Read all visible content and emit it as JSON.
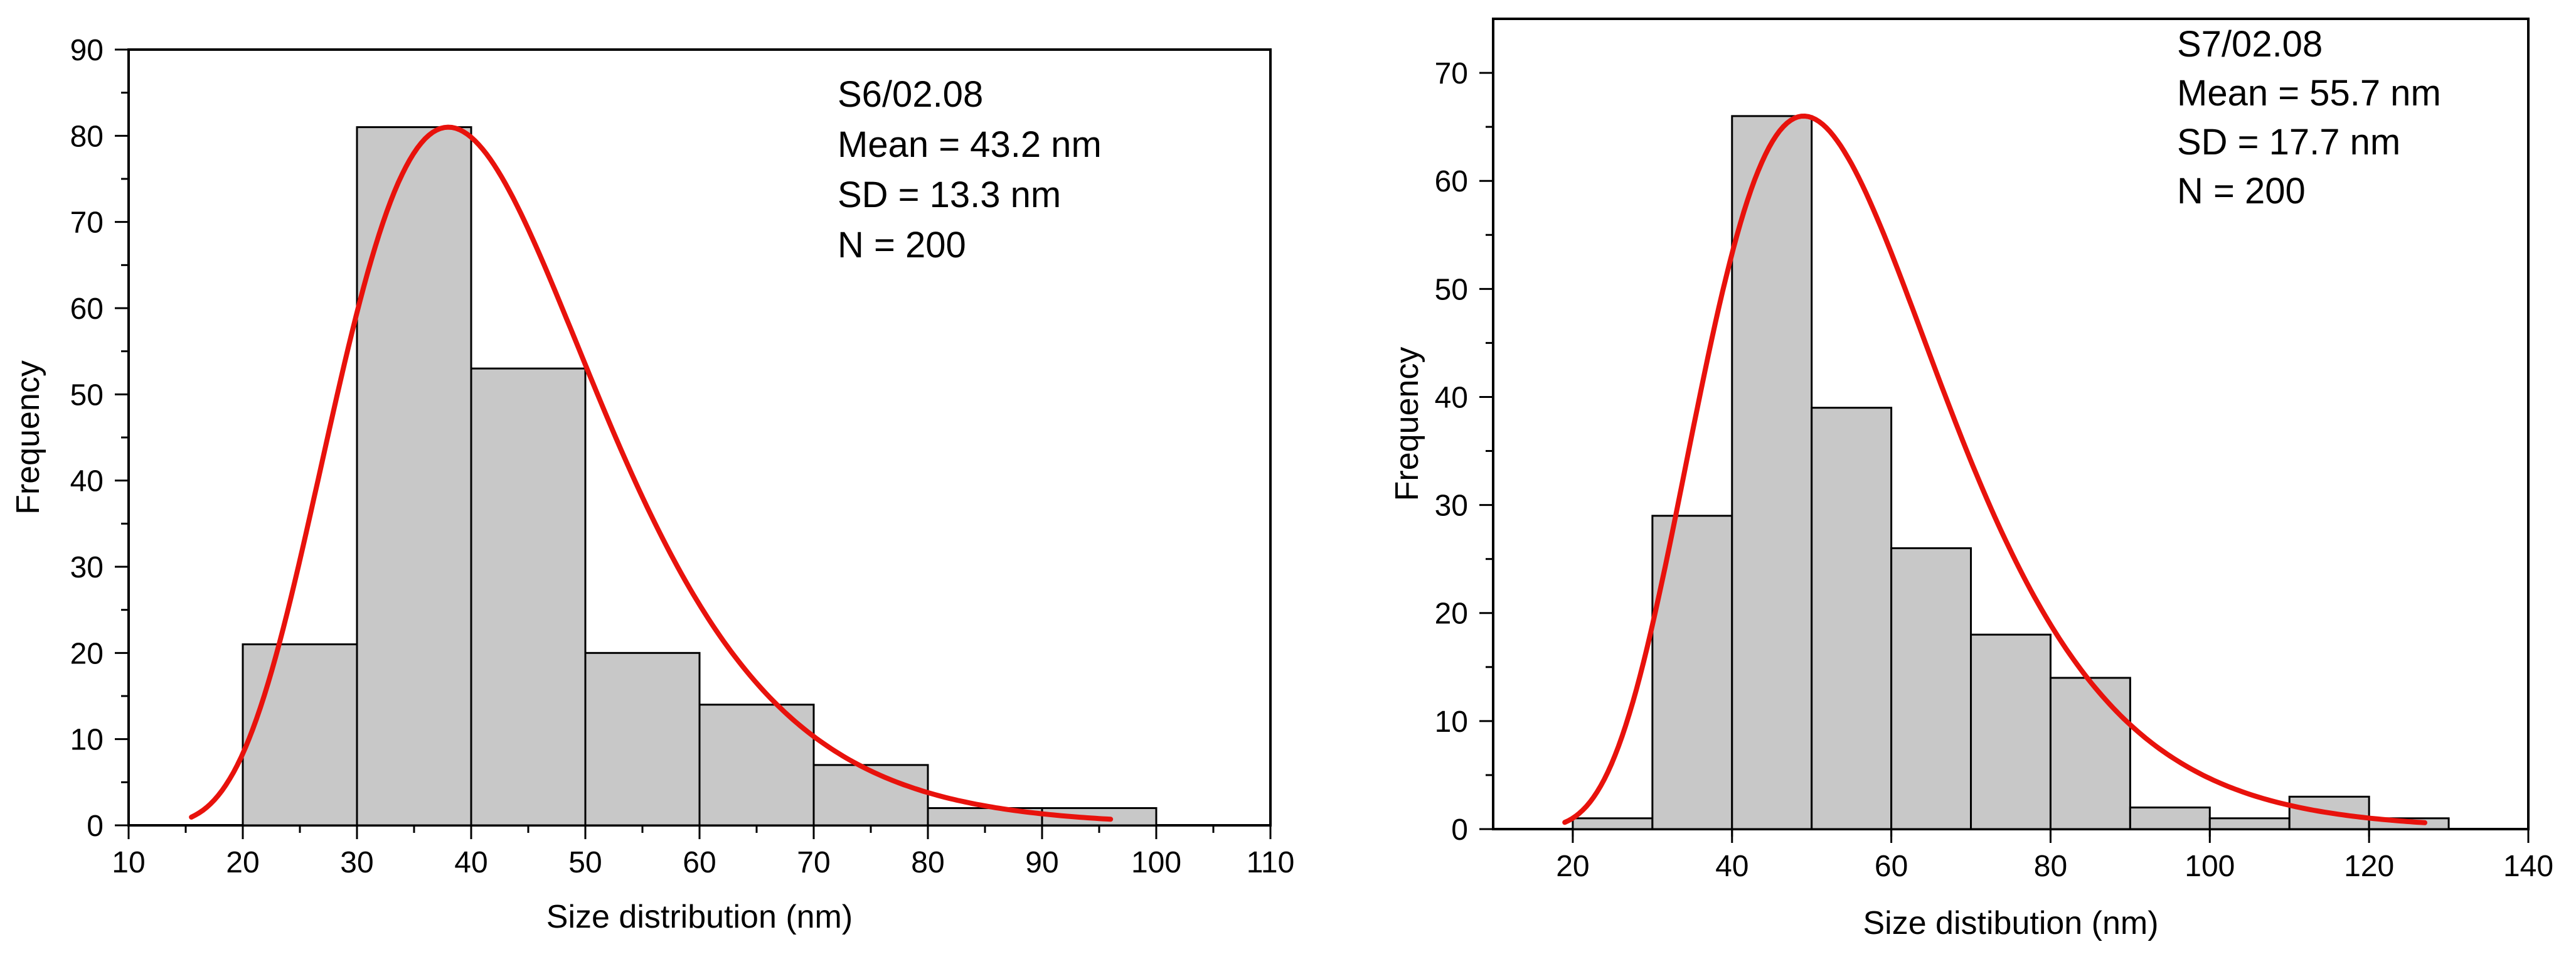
{
  "chart_data": [
    {
      "type": "bar",
      "subtype": "histogram-with-fit",
      "xlabel": "Size distribution (nm)",
      "ylabel": "Frequency",
      "xlim": [
        10,
        110
      ],
      "ylim": [
        0,
        90
      ],
      "xticks": [
        "10",
        "20",
        "30",
        "40",
        "50",
        "60",
        "70",
        "80",
        "90",
        "100",
        "110"
      ],
      "yticks": [
        "0",
        "10",
        "20",
        "30",
        "40",
        "50",
        "60",
        "70",
        "80",
        "90"
      ],
      "bins": [
        {
          "from": 20,
          "to": 30,
          "value": 21
        },
        {
          "from": 30,
          "to": 40,
          "value": 81
        },
        {
          "from": 40,
          "to": 50,
          "value": 53
        },
        {
          "from": 50,
          "to": 60,
          "value": 20
        },
        {
          "from": 60,
          "to": 70,
          "value": 14
        },
        {
          "from": 70,
          "to": 80,
          "value": 7
        },
        {
          "from": 80,
          "to": 90,
          "value": 2
        },
        {
          "from": 90,
          "to": 100,
          "value": 2
        }
      ],
      "fit": {
        "kind": "lognormal",
        "x_range": [
          15.5,
          96
        ],
        "peak_x": 38,
        "peak_y": 81,
        "mean": 43.2,
        "sd": 13.3,
        "color": "#e8120c"
      },
      "bar_color": "#c8c8c8",
      "annotations": [
        "S6/02.08",
        "Mean = 43.2 nm",
        "SD = 13.3 nm",
        "N = 200"
      ]
    },
    {
      "type": "bar",
      "subtype": "histogram-with-fit",
      "xlabel": "Size distibution (nm)",
      "ylabel": "Frequency",
      "xlim": [
        10,
        140
      ],
      "ylim": [
        0,
        75
      ],
      "xticks": [
        "20",
        "40",
        "60",
        "80",
        "100",
        "120",
        "140"
      ],
      "yticks": [
        "0",
        "10",
        "20",
        "30",
        "40",
        "50",
        "60",
        "70"
      ],
      "bins": [
        {
          "from": 20,
          "to": 30,
          "value": 1
        },
        {
          "from": 30,
          "to": 40,
          "value": 29
        },
        {
          "from": 40,
          "to": 50,
          "value": 66
        },
        {
          "from": 50,
          "to": 60,
          "value": 39
        },
        {
          "from": 60,
          "to": 70,
          "value": 26
        },
        {
          "from": 70,
          "to": 80,
          "value": 18
        },
        {
          "from": 80,
          "to": 90,
          "value": 14
        },
        {
          "from": 90,
          "to": 100,
          "value": 2
        },
        {
          "from": 100,
          "to": 110,
          "value": 1
        },
        {
          "from": 110,
          "to": 120,
          "value": 3
        },
        {
          "from": 120,
          "to": 130,
          "value": 1
        }
      ],
      "fit": {
        "kind": "lognormal",
        "x_range": [
          19,
          127
        ],
        "peak_x": 49,
        "peak_y": 66,
        "mean": 55.7,
        "sd": 17.7,
        "color": "#e8120c"
      },
      "bar_color": "#c8c8c8",
      "annotations": [
        "S7/02.08",
        "Mean = 55.7 nm",
        "SD = 17.7 nm",
        "N = 200"
      ]
    }
  ]
}
